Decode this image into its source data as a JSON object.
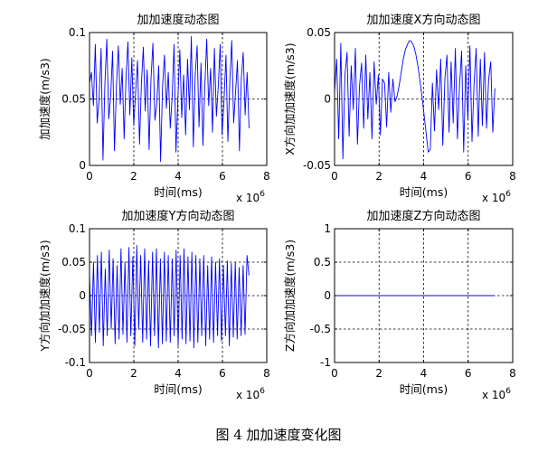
{
  "figure_caption": "图 4  加加速度变化图",
  "chart_data": [
    {
      "type": "line",
      "title": "加加速度动态图",
      "xlabel": "时间(ms)",
      "ylabel": "加加速度(m/s3)",
      "x_multiplier_label": "x 10",
      "x_multiplier_exp": "6",
      "xlim": [
        0,
        8
      ],
      "ylim": [
        0,
        0.1
      ],
      "xticks": [
        "0",
        "2",
        "4",
        "6",
        "8"
      ],
      "yticks": [
        {
          "v": 0,
          "t": "0"
        },
        {
          "v": 0.05,
          "t": "0.05"
        },
        {
          "v": 0.1,
          "t": "0.1"
        }
      ],
      "grid": true,
      "color": "#0000ff",
      "x_end": 7.2,
      "series": [
        {
          "values": [
            0.062,
            0.07,
            0.045,
            0.091,
            0.032,
            0.05,
            0.088,
            0.004,
            0.061,
            0.095,
            0.035,
            0.052,
            0.086,
            0.011,
            0.06,
            0.09,
            0.046,
            0.073,
            0.02,
            0.067,
            0.093,
            0.038,
            0.081,
            0.03,
            0.055,
            0.079,
            0.016,
            0.062,
            0.089,
            0.041,
            0.072,
            0.012,
            0.065,
            0.092,
            0.034,
            0.047,
            0.075,
            0.003,
            0.06,
            0.083,
            0.043,
            0.07,
            0.028,
            0.052,
            0.091,
            0.01,
            0.052,
            0.087,
            0.036,
            0.068,
            0.023,
            0.08,
            0.042,
            0.097,
            0.014,
            0.068,
            0.09,
            0.029,
            0.077,
            0.015,
            0.059,
            0.095,
            0.045,
            0.073,
            0.025,
            0.088,
            0.037,
            0.06,
            0.091,
            0.023,
            0.05,
            0.083,
            0.018,
            0.062,
            0.094,
            0.032,
            0.055,
            0.079,
            0.011,
            0.066,
            0.085,
            0.038,
            0.07,
            0.028
          ]
        }
      ]
    },
    {
      "type": "line",
      "title": "加加速度X方向动态图",
      "xlabel": "时间(ms)",
      "ylabel": "X方向加加速度(m/s3)",
      "x_multiplier_label": "x 10",
      "x_multiplier_exp": "6",
      "xlim": [
        0,
        8
      ],
      "ylim": [
        -0.05,
        0.05
      ],
      "xticks": [
        "0",
        "2",
        "4",
        "6",
        "8"
      ],
      "yticks": [
        {
          "v": -0.05,
          "t": "-0.05"
        },
        {
          "v": 0,
          "t": "0"
        },
        {
          "v": 0.05,
          "t": "0.05"
        }
      ],
      "grid": true,
      "color": "#0000ff",
      "x_end": 7.2,
      "series": [
        {
          "values": [
            0.005,
            0.03,
            -0.03,
            0.042,
            -0.045,
            0.018,
            0.035,
            -0.028,
            0.025,
            -0.008,
            0.038,
            -0.034,
            0.01,
            0.027,
            -0.022,
            0.033,
            -0.015,
            0.02,
            -0.03,
            0.028,
            -0.004,
            0.018,
            -0.027,
            0.015,
            0.012,
            -0.021,
            0.02,
            -0.01,
            0.015,
            -0.002,
            0.002,
            0.01,
            0.02,
            0.03,
            0.037,
            0.041,
            0.044,
            0.043,
            0.04,
            0.034,
            0.025,
            0.014,
            0.002,
            -0.012,
            -0.026,
            -0.04,
            -0.038,
            0.012,
            -0.024,
            0.022,
            -0.008,
            0.03,
            -0.035,
            0.015,
            0.033,
            -0.025,
            0.028,
            -0.018,
            0.038,
            -0.03,
            0.01,
            0.036,
            -0.04,
            0.025,
            -0.015,
            0.04,
            -0.032,
            0.012,
            0.038,
            -0.028,
            0.03,
            -0.02,
            0.035,
            -0.022,
            0.015,
            0.028,
            -0.025,
            0.008
          ]
        }
      ]
    },
    {
      "type": "line",
      "title": "加加速度Y方向动态图",
      "xlabel": "时间(ms)",
      "ylabel": "Y方向加加速度(m/s3)",
      "x_multiplier_label": "x 10",
      "x_multiplier_exp": "6",
      "xlim": [
        0,
        8
      ],
      "ylim": [
        -0.1,
        0.1
      ],
      "xticks": [
        "0",
        "2",
        "4",
        "6",
        "8"
      ],
      "yticks": [
        {
          "v": -0.1,
          "t": "-0.1"
        },
        {
          "v": -0.05,
          "t": "-0.05"
        },
        {
          "v": 0,
          "t": "0"
        },
        {
          "v": 0.05,
          "t": "0.05"
        },
        {
          "v": 0.1,
          "t": "0.1"
        }
      ],
      "grid": true,
      "color": "#0000ff",
      "x_end": 7.2,
      "series": [
        {
          "values": [
            0.03,
            -0.06,
            0.05,
            -0.07,
            0.06,
            -0.055,
            0.065,
            -0.075,
            0.04,
            -0.06,
            0.068,
            -0.05,
            0.055,
            -0.072,
            0.045,
            -0.065,
            0.07,
            -0.058,
            0.05,
            -0.07,
            0.072,
            -0.06,
            0.058,
            -0.075,
            0.075,
            -0.05,
            0.06,
            -0.07,
            0.07,
            -0.065,
            0.052,
            -0.075,
            0.065,
            -0.06,
            0.07,
            -0.078,
            0.055,
            -0.072,
            0.065,
            -0.068,
            0.06,
            -0.07,
            0.055,
            -0.06,
            0.068,
            -0.075,
            0.06,
            -0.065,
            0.07,
            -0.072,
            0.058,
            -0.068,
            0.065,
            -0.078,
            0.06,
            -0.07,
            0.055,
            -0.06,
            0.06,
            -0.075,
            0.045,
            -0.065,
            0.058,
            -0.07,
            0.05,
            -0.06,
            0.055,
            -0.068,
            0.045,
            -0.06,
            0.052,
            -0.075,
            0.048,
            -0.062,
            0.05,
            -0.065,
            0.042,
            -0.06,
            0.045,
            -0.058,
            0.06,
            0.03
          ]
        }
      ]
    },
    {
      "type": "line",
      "title": "加加速度Z方向动态图",
      "xlabel": "时间(ms)",
      "ylabel": "Z方向加加速度(m/s3)",
      "x_multiplier_label": "x 10",
      "x_multiplier_exp": "6",
      "xlim": [
        0,
        8
      ],
      "ylim": [
        -1,
        1
      ],
      "xticks": [
        "0",
        "2",
        "4",
        "6",
        "8"
      ],
      "yticks": [
        {
          "v": -1,
          "t": "-1"
        },
        {
          "v": -0.5,
          "t": "-0.5"
        },
        {
          "v": 0,
          "t": "0"
        },
        {
          "v": 0.5,
          "t": "0.5"
        },
        {
          "v": 1,
          "t": "1"
        }
      ],
      "grid": true,
      "color": "#0000ff",
      "x_end": 7.2,
      "series": [
        {
          "values": [
            0,
            0
          ]
        }
      ]
    }
  ]
}
